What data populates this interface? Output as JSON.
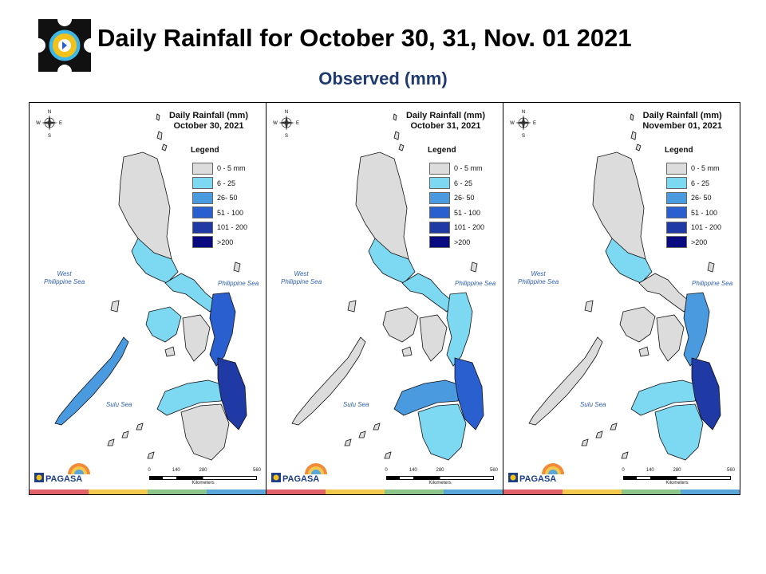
{
  "header": {
    "title": "Daily Rainfall for October 30, 31, Nov. 01 2021",
    "subtitle": "Observed (mm)"
  },
  "legend_colors": [
    "#dcdcdc",
    "#7dd8f2",
    "#4a9ae0",
    "#2a5fcf",
    "#1f3aa5",
    "#0a0a80"
  ],
  "stripe_colors": [
    "#e2626a",
    "#f2c94c",
    "#8cc68a",
    "#5aa6d8"
  ],
  "panels": [
    {
      "title_line1": "Daily Rainfall (mm)",
      "title_line2": "October 30, 2021",
      "legend_title": "Legend",
      "legend": [
        "0 - 5 mm",
        "6 - 25",
        "26- 50",
        "51 - 100",
        "101 - 200",
        ">200"
      ],
      "seas": {
        "west": "West\nPhilippine Sea",
        "east": "Philippine Sea",
        "south": "Sulu Sea"
      },
      "scale": {
        "ticks": [
          "0",
          "140",
          "280",
          "560"
        ],
        "unit": "Kilometers"
      },
      "compass": {
        "n": "N",
        "w": "W",
        "e": "E",
        "s": "S"
      },
      "logo_text": "PAGASA",
      "rain_levels": {
        "luzon_north": 0,
        "central_luzon": 1,
        "bicol": 1,
        "eastern_visayas": 3,
        "western_visayas": 1,
        "central_visayas": 0,
        "mindanao_north": 1,
        "mindanao_east": 4,
        "mindanao_south": 0,
        "palawan": 2
      }
    },
    {
      "title_line1": "Daily Rainfall (mm)",
      "title_line2": "October 31, 2021",
      "legend_title": "Legend",
      "legend": [
        "0 - 5 mm",
        "6 - 25",
        "26- 50",
        "51 - 100",
        "101 - 200",
        ">200"
      ],
      "seas": {
        "west": "West\nPhilippine Sea",
        "east": "Philippine Sea",
        "south": "Sulu Sea"
      },
      "scale": {
        "ticks": [
          "0",
          "140",
          "280",
          "560"
        ],
        "unit": "Kilometers"
      },
      "compass": {
        "n": "N",
        "w": "W",
        "e": "E",
        "s": "S"
      },
      "logo_text": "PAGASA",
      "rain_levels": {
        "luzon_north": 0,
        "central_luzon": 1,
        "bicol": 1,
        "eastern_visayas": 1,
        "western_visayas": 0,
        "central_visayas": 0,
        "mindanao_north": 2,
        "mindanao_east": 3,
        "mindanao_south": 1,
        "palawan": 0
      }
    },
    {
      "title_line1": "Daily Rainfall (mm)",
      "title_line2": "November 01, 2021",
      "legend_title": "Legend",
      "legend": [
        "0 - 5 mm",
        "6 - 25",
        "26- 50",
        "51 - 100",
        "101 - 200",
        ">200"
      ],
      "seas": {
        "west": "West\nPhilippine Sea",
        "east": "Philippine Sea",
        "south": "Sulu Sea"
      },
      "scale": {
        "ticks": [
          "0",
          "140",
          "280",
          "560"
        ],
        "unit": "Kilometers"
      },
      "compass": {
        "n": "N",
        "w": "W",
        "e": "E",
        "s": "S"
      },
      "logo_text": "PAGASA",
      "rain_levels": {
        "luzon_north": 0,
        "central_luzon": 1,
        "bicol": 0,
        "eastern_visayas": 2,
        "western_visayas": 0,
        "central_visayas": 0,
        "mindanao_north": 1,
        "mindanao_east": 4,
        "mindanao_south": 1,
        "palawan": 0
      }
    }
  ]
}
